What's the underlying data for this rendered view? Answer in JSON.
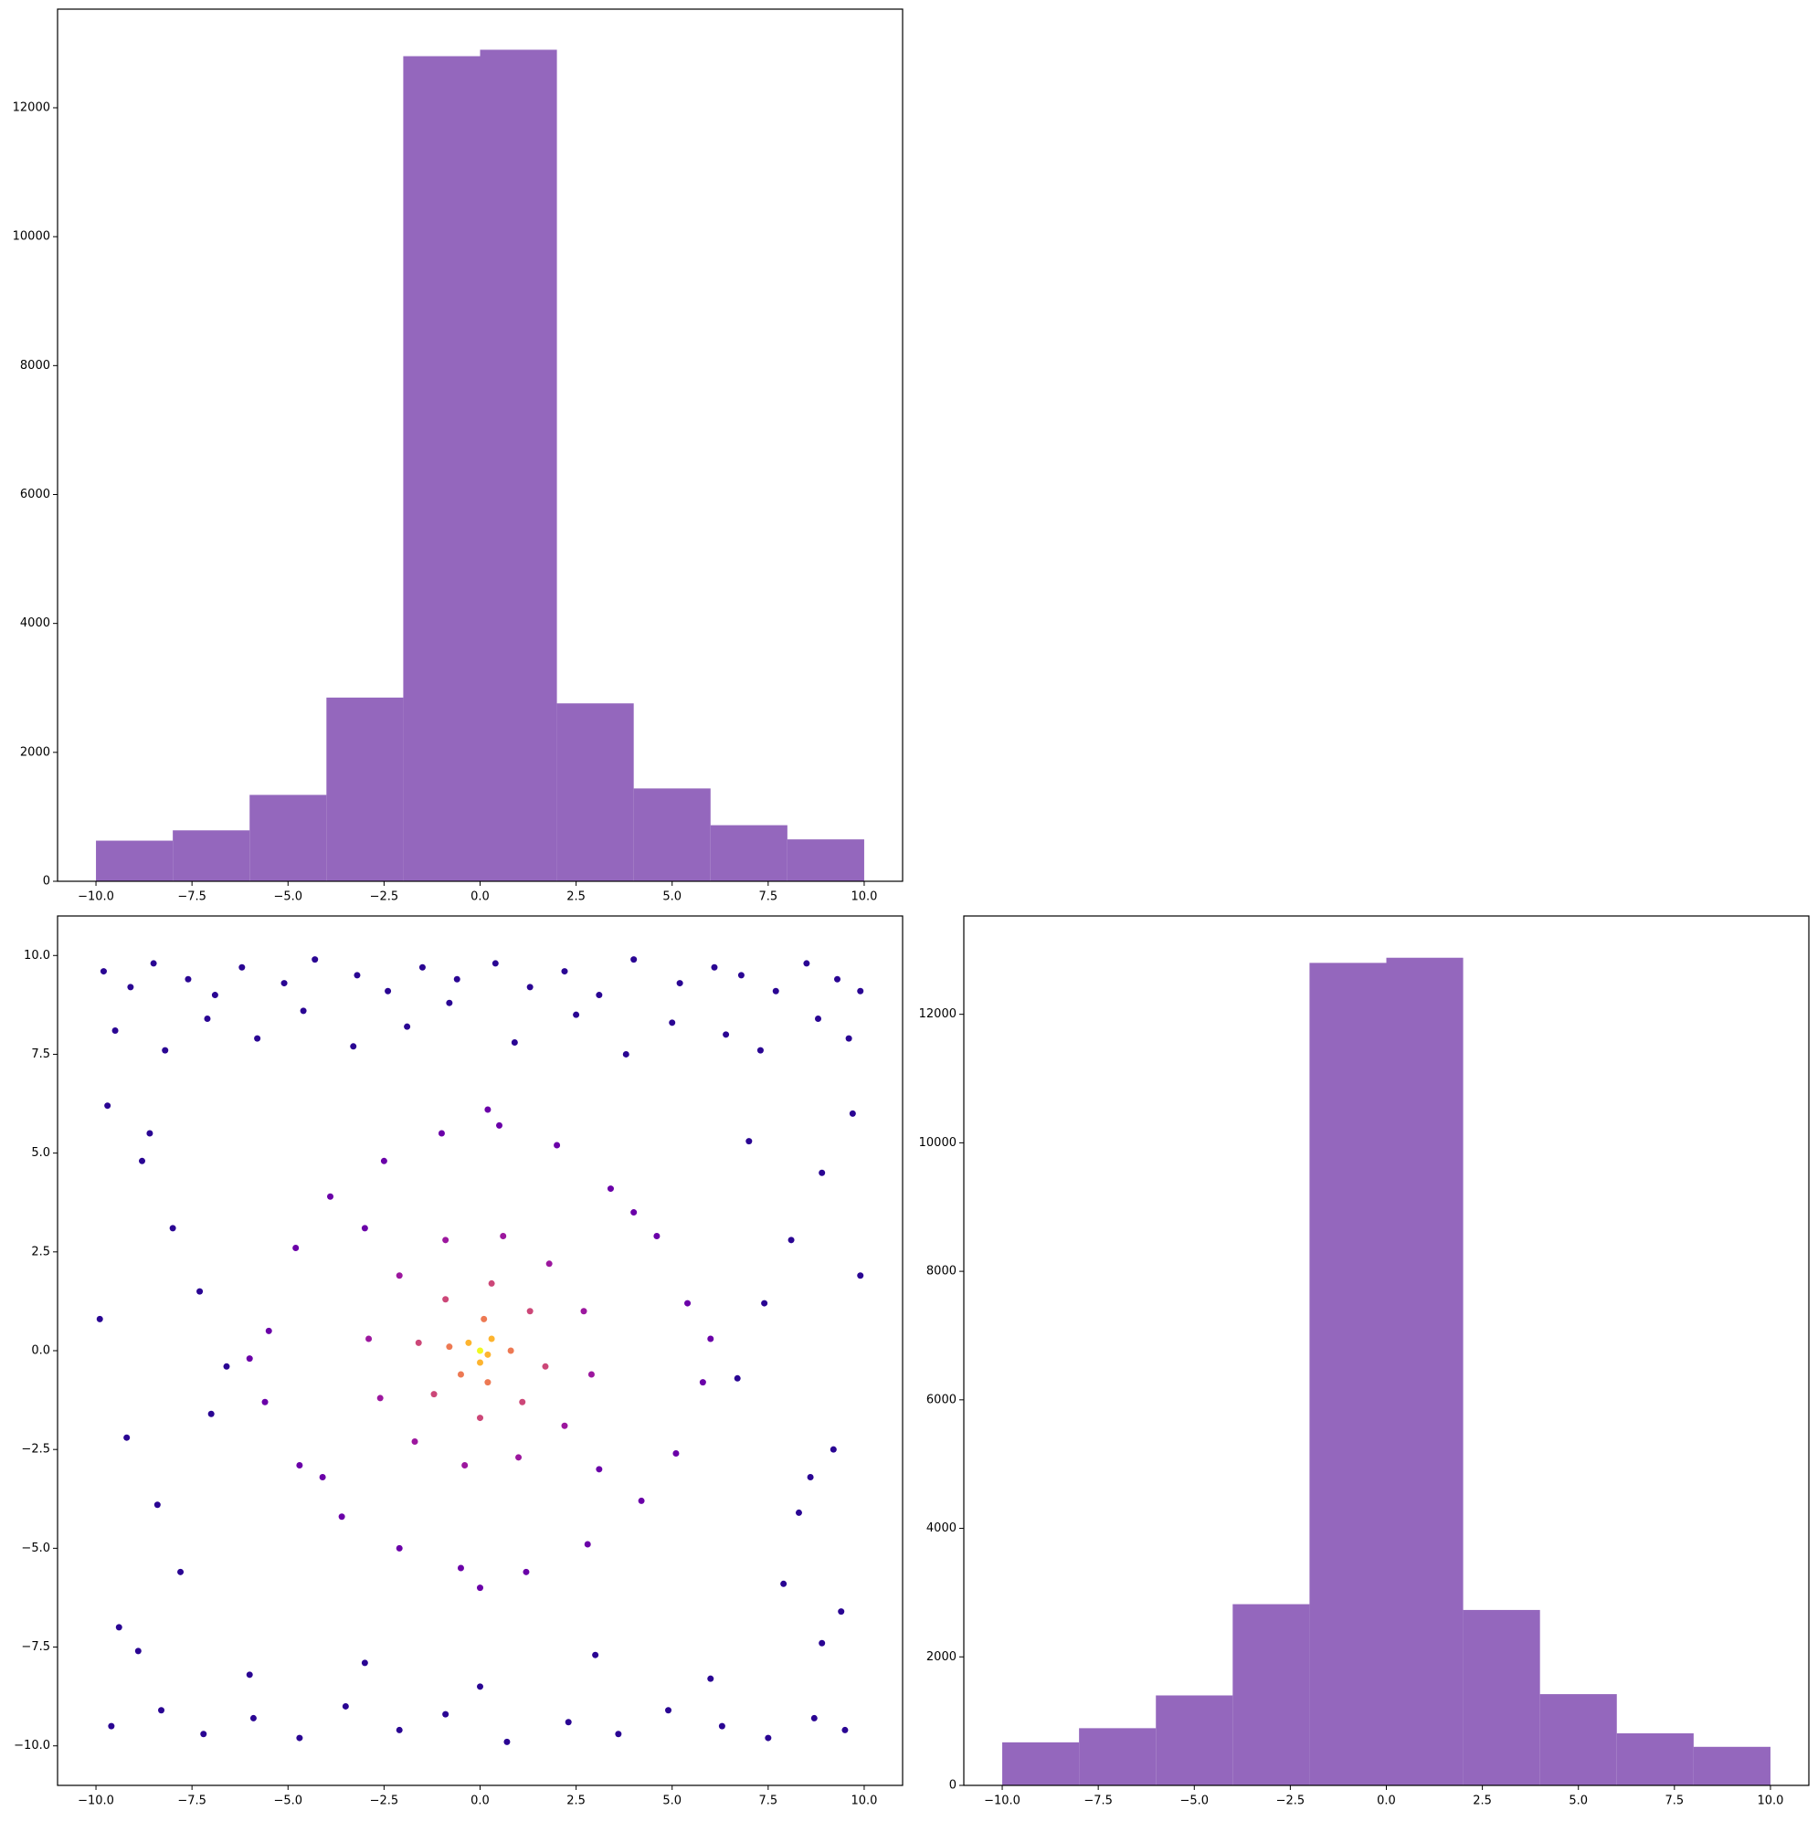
{
  "chart_data": [
    {
      "type": "histogram",
      "color": "#9467bd",
      "bins": [
        -10,
        -8,
        -6,
        -4,
        -2,
        0,
        2,
        4,
        6,
        8,
        10
      ],
      "values": [
        630,
        790,
        1340,
        2850,
        12800,
        12900,
        2760,
        1440,
        870,
        650
      ],
      "xlim": [
        -11,
        11
      ],
      "ylim": [
        0,
        13530
      ],
      "xticks": [
        {
          "value": -10,
          "label": "−10.0"
        },
        {
          "value": -7.5,
          "label": "−7.5"
        },
        {
          "value": -5,
          "label": "−5.0"
        },
        {
          "value": -2.5,
          "label": "−2.5"
        },
        {
          "value": 0,
          "label": "0.0"
        },
        {
          "value": 2.5,
          "label": "2.5"
        },
        {
          "value": 5,
          "label": "5.0"
        },
        {
          "value": 7.5,
          "label": "7.5"
        },
        {
          "value": 10,
          "label": "10.0"
        }
      ],
      "yticks": [
        0,
        2000,
        4000,
        6000,
        8000,
        10000,
        12000
      ]
    },
    {
      "type": "scatter",
      "xlim": [
        -11,
        11
      ],
      "ylim": [
        -11,
        11
      ],
      "xticks": [
        {
          "value": -10,
          "label": "−10.0"
        },
        {
          "value": -7.5,
          "label": "−7.5"
        },
        {
          "value": -5,
          "label": "−5.0"
        },
        {
          "value": -2.5,
          "label": "−2.5"
        },
        {
          "value": 0,
          "label": "0.0"
        },
        {
          "value": 2.5,
          "label": "2.5"
        },
        {
          "value": 5,
          "label": "5.0"
        },
        {
          "value": 7.5,
          "label": "7.5"
        },
        {
          "value": 10,
          "label": "10.0"
        }
      ],
      "yticks": [
        {
          "value": -10,
          "label": "−10.0"
        },
        {
          "value": -7.5,
          "label": "−7.5"
        },
        {
          "value": -5,
          "label": "−5.0"
        },
        {
          "value": -2.5,
          "label": "−2.5"
        },
        {
          "value": 0,
          "label": "0.0"
        },
        {
          "value": 2.5,
          "label": "2.5"
        },
        {
          "value": 5,
          "label": "5.0"
        },
        {
          "value": 7.5,
          "label": "7.5"
        },
        {
          "value": 10,
          "label": "10.0"
        }
      ],
      "series": [
        {
          "color": "#2a0593",
          "x": [
            -9.8,
            -9.1,
            -8.5,
            -7.6,
            -6.9,
            -6.2,
            -5.1,
            -4.3,
            -3.2,
            -2.4,
            -1.5,
            -0.6,
            0.4,
            1.3,
            2.2,
            3.1,
            4.0,
            5.2,
            6.1,
            6.8,
            7.7,
            8.5,
            9.3,
            9.9,
            -9.5,
            -8.2,
            -7.1,
            -5.8,
            -4.6,
            -3.3,
            -1.9,
            -0.8,
            0.9,
            2.5,
            3.8,
            5.0,
            6.4,
            7.3,
            8.8,
            9.6,
            -9.7,
            -8.8,
            -8.0,
            -7.3,
            -6.6,
            -9.2,
            -8.4,
            -7.8,
            -9.9,
            -8.6,
            -7.0,
            -9.4,
            9.7,
            8.9,
            8.1,
            7.4,
            6.7,
            9.2,
            8.3,
            7.9,
            9.9,
            8.6,
            7.0,
            9.4,
            -9.6,
            -8.3,
            -7.2,
            -5.9,
            -4.7,
            -3.5,
            -2.1,
            -0.9,
            0.7,
            2.3,
            3.6,
            4.9,
            6.3,
            7.5,
            8.7,
            9.5,
            -8.9,
            -6.0,
            -3.0,
            0.0,
            3.0,
            6.0,
            8.9
          ],
          "y": [
            9.6,
            9.2,
            9.8,
            9.4,
            9.0,
            9.7,
            9.3,
            9.9,
            9.5,
            9.1,
            9.7,
            9.4,
            9.8,
            9.2,
            9.6,
            9.0,
            9.9,
            9.3,
            9.7,
            9.5,
            9.1,
            9.8,
            9.4,
            9.1,
            8.1,
            7.6,
            8.4,
            7.9,
            8.6,
            7.7,
            8.2,
            8.8,
            7.8,
            8.5,
            7.5,
            8.3,
            8.0,
            7.6,
            8.4,
            7.9,
            6.2,
            4.8,
            3.1,
            1.5,
            -0.4,
            -2.2,
            -3.9,
            -5.6,
            0.8,
            5.5,
            -1.6,
            -7.0,
            6.0,
            4.5,
            2.8,
            1.2,
            -0.7,
            -2.5,
            -4.1,
            -5.9,
            1.9,
            -3.2,
            5.3,
            -6.6,
            -9.5,
            -9.1,
            -9.7,
            -9.3,
            -9.8,
            -9.0,
            -9.6,
            -9.2,
            -9.9,
            -9.4,
            -9.7,
            -9.1,
            -9.5,
            -9.8,
            -9.3,
            -9.6,
            -7.6,
            -8.2,
            -7.9,
            -8.5,
            -7.7,
            -8.3,
            -7.4
          ]
        },
        {
          "color": "#6a00a8",
          "x": [
            -5.5,
            -4.8,
            -3.9,
            -2.5,
            -1.0,
            0.5,
            2.0,
            3.4,
            4.6,
            5.4,
            5.8,
            5.1,
            4.2,
            2.8,
            1.2,
            -0.5,
            -2.1,
            -3.6,
            -4.7,
            -5.6,
            -3.0,
            3.1,
            -4.1,
            4.0,
            0.0,
            -6.0,
            6.0,
            0.2
          ],
          "y": [
            0.5,
            2.6,
            3.9,
            4.8,
            5.5,
            5.7,
            5.2,
            4.1,
            2.9,
            1.2,
            -0.8,
            -2.6,
            -3.8,
            -4.9,
            -5.6,
            -5.5,
            -5.0,
            -4.2,
            -2.9,
            -1.3,
            3.1,
            -3.0,
            -3.2,
            3.5,
            -6.0,
            -0.2,
            0.3,
            6.1
          ]
        },
        {
          "color": "#9c179e",
          "x": [
            -2.9,
            -2.1,
            -0.9,
            0.6,
            1.8,
            2.7,
            2.9,
            2.2,
            1.0,
            -0.4,
            -1.7,
            -2.6
          ],
          "y": [
            0.3,
            1.9,
            2.8,
            2.9,
            2.2,
            1.0,
            -0.6,
            -1.9,
            -2.7,
            -2.9,
            -2.3,
            -1.2
          ]
        },
        {
          "color": "#cc4778",
          "x": [
            -1.6,
            -0.9,
            0.3,
            1.3,
            1.7,
            1.1,
            0.0,
            -1.2
          ],
          "y": [
            0.2,
            1.3,
            1.7,
            1.0,
            -0.4,
            -1.3,
            -1.7,
            -1.1
          ]
        },
        {
          "color": "#ed7953",
          "x": [
            -0.8,
            0.1,
            0.8,
            0.2,
            -0.5
          ],
          "y": [
            0.1,
            0.8,
            0.0,
            -0.8,
            -0.6
          ]
        },
        {
          "color": "#fdb42f",
          "x": [
            -0.3,
            0.3,
            0.0,
            0.2
          ],
          "y": [
            0.2,
            0.3,
            -0.3,
            -0.1
          ]
        },
        {
          "color": "#f0f921",
          "x": [
            0.0
          ],
          "y": [
            0.0
          ]
        }
      ]
    },
    {
      "type": "histogram",
      "color": "#9467bd",
      "bins": [
        -10,
        -8,
        -6,
        -4,
        -2,
        0,
        2,
        4,
        6,
        8,
        10
      ],
      "values": [
        670,
        890,
        1400,
        2820,
        12800,
        12880,
        2730,
        1420,
        810,
        600
      ],
      "xlim": [
        -11,
        11
      ],
      "ylim": [
        0,
        13530
      ],
      "xticks": [
        {
          "value": -10,
          "label": "−10.0"
        },
        {
          "value": -7.5,
          "label": "−7.5"
        },
        {
          "value": -5,
          "label": "−5.0"
        },
        {
          "value": -2.5,
          "label": "−2.5"
        },
        {
          "value": 0,
          "label": "0.0"
        },
        {
          "value": 2.5,
          "label": "2.5"
        },
        {
          "value": 5,
          "label": "5.0"
        },
        {
          "value": 7.5,
          "label": "7.5"
        },
        {
          "value": 10,
          "label": "10.0"
        }
      ],
      "yticks": [
        0,
        2000,
        4000,
        6000,
        8000,
        10000,
        12000
      ]
    }
  ]
}
